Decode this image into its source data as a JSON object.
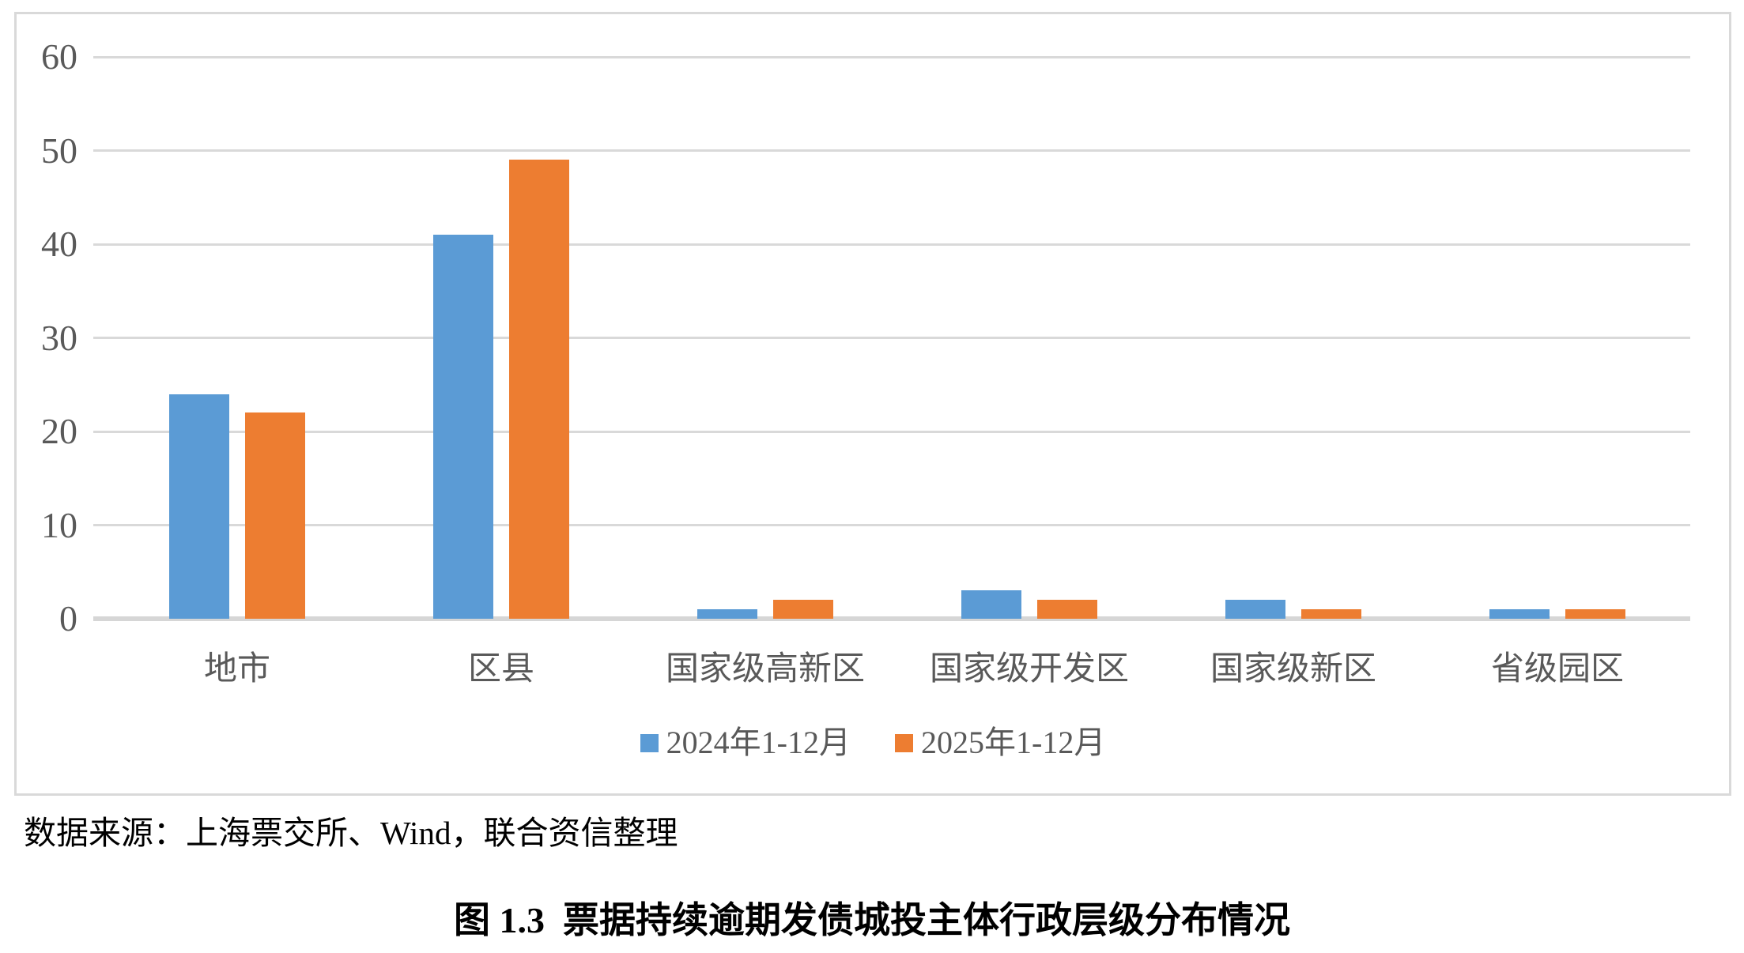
{
  "figure": {
    "source_note": "数据来源：上海票交所、Wind，联合资信整理",
    "caption": "图 1.3  票据持续逾期发债城投主体行政层级分布情况"
  },
  "chart_data": {
    "type": "bar",
    "title": "",
    "xlabel": "",
    "ylabel": "",
    "categories": [
      "地市",
      "区县",
      "国家级高新区",
      "国家级开发区",
      "国家级新区",
      "省级园区"
    ],
    "series": [
      {
        "name": "2024年1-12月",
        "color": "#5B9BD5",
        "values": [
          24,
          41,
          1,
          3,
          2,
          1
        ]
      },
      {
        "name": "2025年1-12月",
        "color": "#ED7D31",
        "values": [
          22,
          49,
          2,
          2,
          1,
          1
        ]
      }
    ],
    "ylim": [
      0,
      60
    ],
    "yticks": [
      0,
      10,
      20,
      30,
      40,
      50,
      60
    ],
    "grid": true,
    "gridline_color": "#D9D9D9",
    "tick_label_color": "#595959",
    "legend_position": "bottom"
  }
}
